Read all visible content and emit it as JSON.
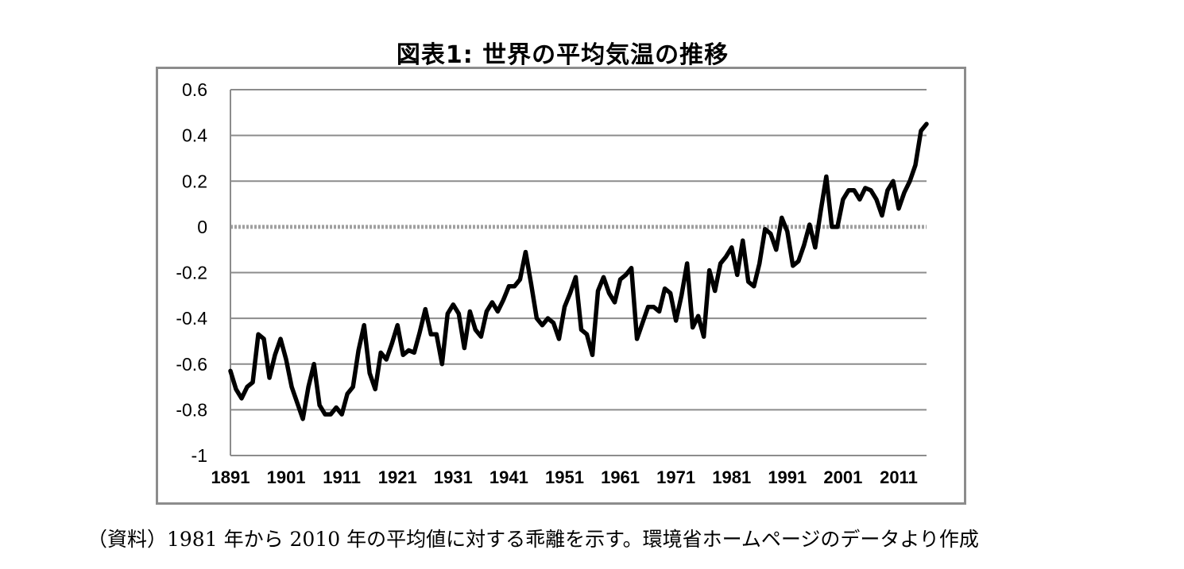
{
  "chart_data": {
    "type": "line",
    "title": "図表1: 世界の平均気温の推移",
    "xlabel": "",
    "ylabel": "",
    "ylim": [
      -1,
      0.6
    ],
    "xlim": [
      1891,
      2016
    ],
    "yticks": [
      "0.6",
      "0.4",
      "0.2",
      "0",
      "-0.2",
      "-0.4",
      "-0.6",
      "-0.8",
      "-1"
    ],
    "xticks": [
      "1891",
      "1901",
      "1911",
      "1921",
      "1931",
      "1941",
      "1951",
      "1961",
      "1971",
      "1981",
      "1991",
      "2001",
      "2011"
    ],
    "grid": true,
    "legend": "none",
    "line_color": "#000000",
    "zero_line_color": "#a0a0a0",
    "x": [
      1891,
      1892,
      1893,
      1894,
      1895,
      1896,
      1897,
      1898,
      1899,
      1900,
      1901,
      1902,
      1903,
      1904,
      1905,
      1906,
      1907,
      1908,
      1909,
      1910,
      1911,
      1912,
      1913,
      1914,
      1915,
      1916,
      1917,
      1918,
      1919,
      1920,
      1921,
      1922,
      1923,
      1924,
      1925,
      1926,
      1927,
      1928,
      1929,
      1930,
      1931,
      1932,
      1933,
      1934,
      1935,
      1936,
      1937,
      1938,
      1939,
      1940,
      1941,
      1942,
      1943,
      1944,
      1945,
      1946,
      1947,
      1948,
      1949,
      1950,
      1951,
      1952,
      1953,
      1954,
      1955,
      1956,
      1957,
      1958,
      1959,
      1960,
      1961,
      1962,
      1963,
      1964,
      1965,
      1966,
      1967,
      1968,
      1969,
      1970,
      1971,
      1972,
      1973,
      1974,
      1975,
      1976,
      1977,
      1978,
      1979,
      1980,
      1981,
      1982,
      1983,
      1984,
      1985,
      1986,
      1987,
      1988,
      1989,
      1990,
      1991,
      1992,
      1993,
      1994,
      1995,
      1996,
      1997,
      1998,
      1999,
      2000,
      2001,
      2002,
      2003,
      2004,
      2005,
      2006,
      2007,
      2008,
      2009,
      2010,
      2011,
      2012,
      2013,
      2014,
      2015,
      2016
    ],
    "series": [
      {
        "values": [
          -0.63,
          -0.71,
          -0.75,
          -0.7,
          -0.68,
          -0.47,
          -0.49,
          -0.66,
          -0.56,
          -0.49,
          -0.58,
          -0.7,
          -0.77,
          -0.84,
          -0.7,
          -0.6,
          -0.78,
          -0.82,
          -0.82,
          -0.79,
          -0.82,
          -0.73,
          -0.7,
          -0.54,
          -0.43,
          -0.64,
          -0.71,
          -0.55,
          -0.58,
          -0.51,
          -0.43,
          -0.56,
          -0.54,
          -0.55,
          -0.46,
          -0.36,
          -0.47,
          -0.47,
          -0.6,
          -0.38,
          -0.34,
          -0.38,
          -0.53,
          -0.37,
          -0.45,
          -0.48,
          -0.37,
          -0.33,
          -0.37,
          -0.32,
          -0.26,
          -0.26,
          -0.23,
          -0.11,
          -0.25,
          -0.4,
          -0.43,
          -0.4,
          -0.42,
          -0.49,
          -0.35,
          -0.29,
          -0.22,
          -0.45,
          -0.47,
          -0.56,
          -0.28,
          -0.22,
          -0.29,
          -0.33,
          -0.23,
          -0.21,
          -0.18,
          -0.49,
          -0.42,
          -0.35,
          -0.35,
          -0.37,
          -0.27,
          -0.29,
          -0.41,
          -0.3,
          -0.16,
          -0.44,
          -0.39,
          -0.48,
          -0.19,
          -0.28,
          -0.16,
          -0.13,
          -0.09,
          -0.21,
          -0.06,
          -0.24,
          -0.26,
          -0.16,
          -0.01,
          -0.03,
          -0.1,
          0.04,
          -0.02,
          -0.17,
          -0.15,
          -0.08,
          0.01,
          -0.09,
          0.07,
          0.22,
          0.0,
          0.0,
          0.12,
          0.16,
          0.16,
          0.12,
          0.17,
          0.16,
          0.12,
          0.05,
          0.16,
          0.2,
          0.08,
          0.15,
          0.2,
          0.27,
          0.42,
          0.45
        ]
      }
    ]
  },
  "source_note": "（資料）1981 年から 2010 年の平均値に対する乖離を示す。環境省ホームページのデータより作成"
}
